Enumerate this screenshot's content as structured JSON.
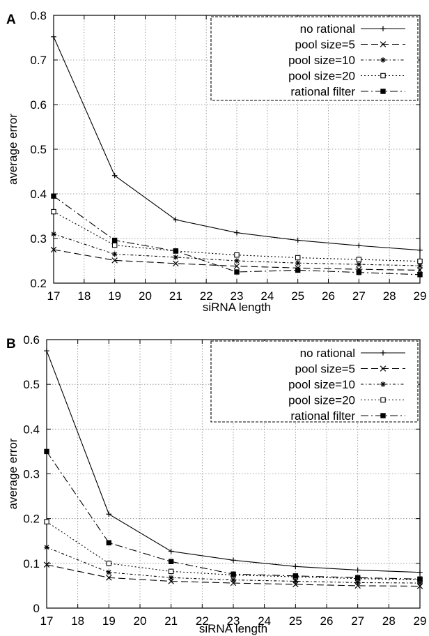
{
  "panels": [
    {
      "letter": "A"
    },
    {
      "letter": "B"
    }
  ],
  "chart_data": [
    {
      "type": "line",
      "panel": "A",
      "title": "",
      "xlabel": "siRNA length",
      "ylabel": "average error",
      "xlim": [
        17,
        29
      ],
      "ylim": [
        0.2,
        0.8
      ],
      "xticks": [
        "17",
        "18",
        "19",
        "20",
        "21",
        "22",
        "23",
        "24",
        "25",
        "26",
        "27",
        "28",
        "29"
      ],
      "yticks": [
        "0.2",
        "0.3",
        "0.4",
        "0.5",
        "0.6",
        "0.7",
        "0.8"
      ],
      "grid": true,
      "legend_position": "top-right",
      "x": [
        17,
        19,
        21,
        23,
        25,
        27,
        29
      ],
      "series": [
        {
          "name": "no rational",
          "style": "solid",
          "marker": "plus",
          "values": [
            0.752,
            0.441,
            0.342,
            0.313,
            0.296,
            0.284,
            0.274
          ]
        },
        {
          "name": "pool size=5",
          "style": "dashed",
          "marker": "x",
          "values": [
            0.275,
            0.251,
            0.244,
            0.238,
            0.234,
            0.231,
            0.229
          ]
        },
        {
          "name": "pool size=10",
          "style": "dotted-dash",
          "marker": "star",
          "values": [
            0.31,
            0.265,
            0.258,
            0.25,
            0.245,
            0.242,
            0.239
          ]
        },
        {
          "name": "pool size=20",
          "style": "dotted",
          "marker": "square-open",
          "values": [
            0.36,
            0.285,
            0.272,
            0.263,
            0.257,
            0.253,
            0.249
          ]
        },
        {
          "name": "rational filter",
          "style": "dashdot",
          "marker": "square-filled",
          "values": [
            0.395,
            0.296,
            0.272,
            0.225,
            0.229,
            0.224,
            0.219
          ]
        }
      ]
    },
    {
      "type": "line",
      "panel": "B",
      "title": "",
      "xlabel": "siRNA length",
      "ylabel": "average error",
      "xlim": [
        17,
        29
      ],
      "ylim": [
        0,
        0.6
      ],
      "xticks": [
        "17",
        "18",
        "19",
        "20",
        "21",
        "22",
        "23",
        "24",
        "25",
        "26",
        "27",
        "28",
        "29"
      ],
      "yticks": [
        "0",
        "0.1",
        "0.2",
        "0.3",
        "0.4",
        "0.5",
        "0.6"
      ],
      "grid": true,
      "legend_position": "top-right",
      "x": [
        17,
        19,
        21,
        23,
        25,
        27,
        29
      ],
      "series": [
        {
          "name": "no rational",
          "style": "solid",
          "marker": "plus",
          "values": [
            0.575,
            0.21,
            0.127,
            0.107,
            0.093,
            0.085,
            0.08
          ]
        },
        {
          "name": "pool size=5",
          "style": "dashed",
          "marker": "x",
          "values": [
            0.097,
            0.068,
            0.06,
            0.056,
            0.053,
            0.05,
            0.049
          ]
        },
        {
          "name": "pool size=10",
          "style": "dotted-dash",
          "marker": "star",
          "values": [
            0.136,
            0.08,
            0.068,
            0.063,
            0.06,
            0.057,
            0.056
          ]
        },
        {
          "name": "pool size=20",
          "style": "dotted",
          "marker": "square-open",
          "values": [
            0.193,
            0.1,
            0.082,
            0.074,
            0.07,
            0.066,
            0.063
          ]
        },
        {
          "name": "rational filter",
          "style": "dashdot",
          "marker": "square-filled",
          "values": [
            0.35,
            0.146,
            0.104,
            0.076,
            0.072,
            0.068,
            0.065
          ]
        }
      ]
    }
  ]
}
